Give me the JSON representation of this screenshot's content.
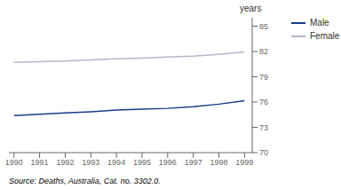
{
  "chart_data": {
    "type": "line",
    "ylabel": "years",
    "annotations": [
      "Source: Deaths, Australia, Cat. no. 3302.0."
    ],
    "x": [
      1990,
      1991,
      1992,
      1993,
      1994,
      1995,
      1996,
      1997,
      1998,
      1999
    ],
    "series": [
      {
        "name": "Male",
        "color": "#1a3a8a",
        "values": [
          74.4,
          74.55,
          74.7,
          74.85,
          75.05,
          75.15,
          75.25,
          75.45,
          75.75,
          76.15
        ]
      },
      {
        "name": "Female",
        "color": "#b0b8c8",
        "values": [
          80.7,
          80.78,
          80.88,
          81.0,
          81.12,
          81.22,
          81.35,
          81.45,
          81.65,
          81.95
        ]
      }
    ],
    "xlim": [
      1989.8,
      1999.3
    ],
    "xticks": [
      1990,
      1991,
      1992,
      1993,
      1994,
      1995,
      1996,
      1997,
      1998,
      1999
    ],
    "ylim": [
      70,
      86
    ],
    "yticks": [
      70,
      73,
      76,
      79,
      82,
      85
    ],
    "grid": false,
    "legend": "right"
  }
}
